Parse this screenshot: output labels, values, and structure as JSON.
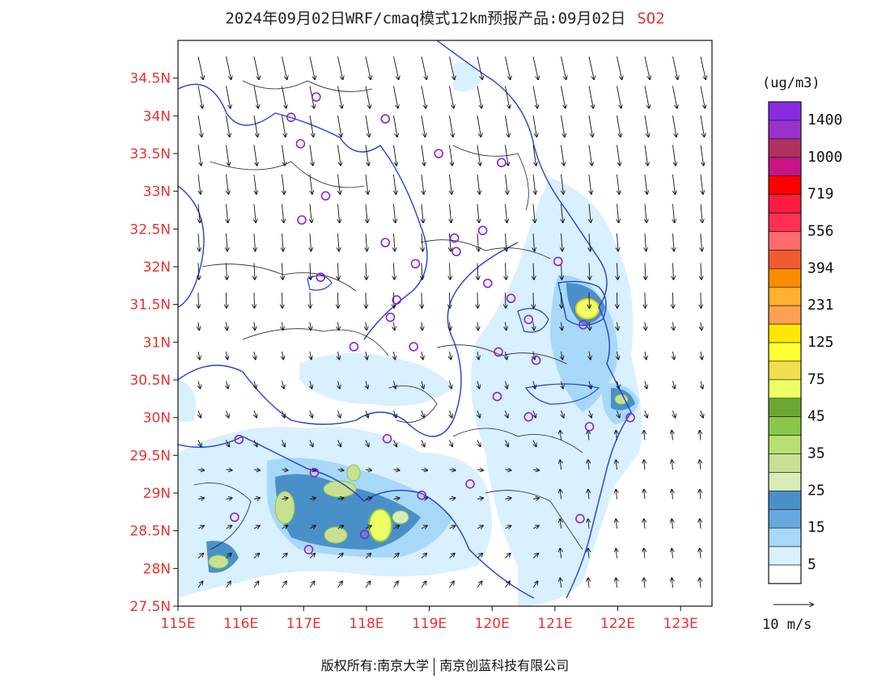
{
  "title": {
    "text": "2024年09月02日WRF/cmaq模式12km预报产品:09月02日",
    "pollutant": "SO2"
  },
  "footer": {
    "left": "版权所有:南京大学",
    "right": "南京创蓝科技有限公司"
  },
  "axes": {
    "lon_range": [
      115,
      123.5
    ],
    "lat_range": [
      27.5,
      35
    ],
    "x_ticks": [
      "115E",
      "116E",
      "117E",
      "118E",
      "119E",
      "120E",
      "121E",
      "122E",
      "123E"
    ],
    "y_ticks": [
      "27.5N",
      "28N",
      "28.5N",
      "29N",
      "29.5N",
      "30N",
      "30.5N",
      "31N",
      "31.5N",
      "32N",
      "32.5N",
      "33N",
      "33.5N",
      "34N",
      "34.5N"
    ]
  },
  "legend": {
    "unit": "(ug/m3)",
    "labels": [
      "1400",
      "1000",
      "719",
      "556",
      "394",
      "231",
      "125",
      "75",
      "45",
      "35",
      "25",
      "15",
      "5"
    ],
    "colors_top_to_bottom": [
      "#8a2be2",
      "#9932cc",
      "#b03060",
      "#c71585",
      "#ff0000",
      "#ff1a40",
      "#ff3050",
      "#ff6a6a",
      "#f25a30",
      "#ff8c00",
      "#ffb030",
      "#ffa050",
      "#ffe800",
      "#ffff33",
      "#f0e050",
      "#eeff66",
      "#6aa832",
      "#88c848",
      "#b8e070",
      "#c8e090",
      "#d8ecb8",
      "#4a90c8",
      "#66a8e0",
      "#a8d8f8",
      "#d8f0ff",
      "#ffffff"
    ]
  },
  "wind_scale": {
    "label": "10 m/s"
  },
  "stations": [
    {
      "lon": 117.2,
      "lat": 34.25
    },
    {
      "lon": 116.8,
      "lat": 33.98
    },
    {
      "lon": 118.3,
      "lat": 33.96
    },
    {
      "lon": 116.95,
      "lat": 33.63
    },
    {
      "lon": 119.15,
      "lat": 33.5
    },
    {
      "lon": 120.15,
      "lat": 33.38
    },
    {
      "lon": 117.35,
      "lat": 32.94
    },
    {
      "lon": 116.97,
      "lat": 32.62
    },
    {
      "lon": 119.85,
      "lat": 32.48
    },
    {
      "lon": 118.3,
      "lat": 32.32
    },
    {
      "lon": 119.4,
      "lat": 32.38
    },
    {
      "lon": 119.43,
      "lat": 32.2
    },
    {
      "lon": 118.78,
      "lat": 32.04
    },
    {
      "lon": 121.05,
      "lat": 32.07
    },
    {
      "lon": 117.27,
      "lat": 31.86
    },
    {
      "lon": 119.93,
      "lat": 31.78
    },
    {
      "lon": 120.3,
      "lat": 31.58
    },
    {
      "lon": 118.48,
      "lat": 31.56
    },
    {
      "lon": 118.38,
      "lat": 31.33
    },
    {
      "lon": 120.58,
      "lat": 31.3
    },
    {
      "lon": 121.45,
      "lat": 31.23
    },
    {
      "lon": 117.8,
      "lat": 30.94
    },
    {
      "lon": 118.75,
      "lat": 30.94
    },
    {
      "lon": 120.1,
      "lat": 30.87
    },
    {
      "lon": 120.7,
      "lat": 30.76
    },
    {
      "lon": 120.08,
      "lat": 30.28
    },
    {
      "lon": 121.55,
      "lat": 29.88
    },
    {
      "lon": 120.58,
      "lat": 30.01
    },
    {
      "lon": 122.2,
      "lat": 30.0
    },
    {
      "lon": 115.97,
      "lat": 29.71
    },
    {
      "lon": 118.33,
      "lat": 29.72
    },
    {
      "lon": 117.17,
      "lat": 29.27
    },
    {
      "lon": 119.65,
      "lat": 29.12
    },
    {
      "lon": 118.88,
      "lat": 28.97
    },
    {
      "lon": 115.9,
      "lat": 28.68
    },
    {
      "lon": 121.4,
      "lat": 28.66
    },
    {
      "lon": 117.97,
      "lat": 28.45
    },
    {
      "lon": 117.08,
      "lat": 28.25
    }
  ]
}
